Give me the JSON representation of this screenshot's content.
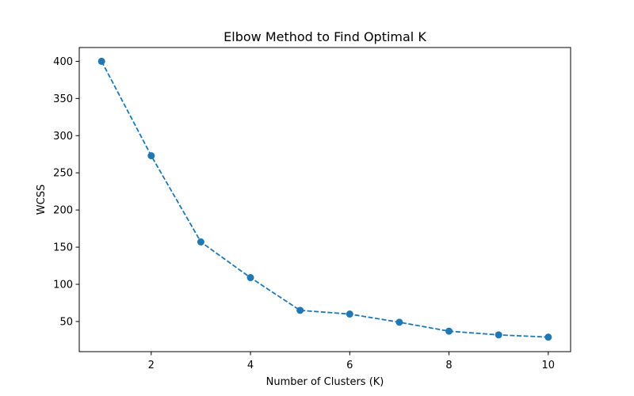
{
  "chart_data": {
    "type": "line",
    "title": "Elbow Method to Find Optimal K",
    "xlabel": "Number of Clusters (K)",
    "ylabel": "WCSS",
    "x": [
      1,
      2,
      3,
      4,
      5,
      6,
      7,
      8,
      9,
      10
    ],
    "series": [
      {
        "values": [
          400,
          273,
          157,
          109,
          65,
          60,
          49,
          37,
          32,
          29
        ],
        "color": "#1f77b4",
        "line_style": "dashed",
        "marker": "circle"
      }
    ],
    "xlim": [
      0.55,
      10.45
    ],
    "ylim": [
      9.45,
      418.55
    ],
    "xticks": [
      2,
      4,
      6,
      8,
      10
    ],
    "yticks": [
      50,
      100,
      150,
      200,
      250,
      300,
      350,
      400
    ],
    "grid": false,
    "legend": "none"
  }
}
